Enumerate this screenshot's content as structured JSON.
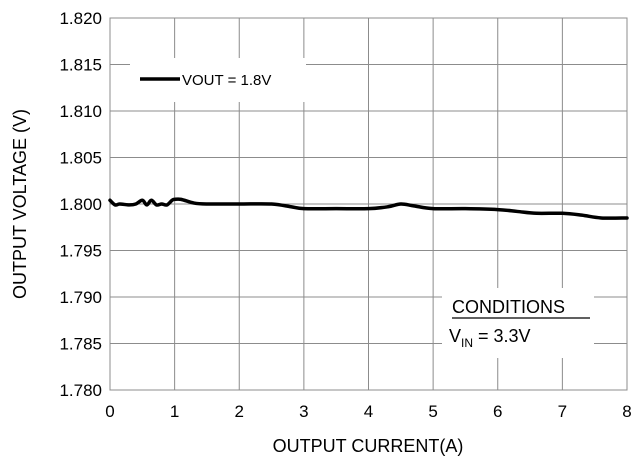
{
  "chart_data": {
    "type": "line",
    "xlabel": "OUTPUT CURRENT(A)",
    "ylabel": "OUTPUT VOLTAGE (V)",
    "xlim": [
      0,
      8
    ],
    "ylim": [
      1.78,
      1.82
    ],
    "x_ticks": [
      "0",
      "1",
      "2",
      "3",
      "4",
      "5",
      "6",
      "7",
      "8"
    ],
    "y_ticks": [
      "1.780",
      "1.785",
      "1.790",
      "1.795",
      "1.800",
      "1.805",
      "1.810",
      "1.815",
      "1.820"
    ],
    "grid": true,
    "legend_position": "top-left",
    "series": [
      {
        "name": "VOUT = 1.8V",
        "color": "#000000",
        "x": [
          0.0,
          0.08,
          0.15,
          0.3,
          0.4,
          0.5,
          0.57,
          0.64,
          0.72,
          0.8,
          0.88,
          0.96,
          1.0,
          1.1,
          1.3,
          1.5,
          2.0,
          2.5,
          2.8,
          3.0,
          3.5,
          4.0,
          4.3,
          4.5,
          4.7,
          5.0,
          5.5,
          6.0,
          6.3,
          6.6,
          7.0,
          7.3,
          7.6,
          8.0
        ],
        "values": [
          1.8004,
          1.7999,
          1.8,
          1.7999,
          1.8,
          1.8004,
          1.7999,
          1.8004,
          1.7999,
          1.8,
          1.7999,
          1.8004,
          1.8005,
          1.8005,
          1.8001,
          1.8,
          1.8,
          1.8,
          1.7997,
          1.7995,
          1.7995,
          1.7995,
          1.7997,
          1.8,
          1.7998,
          1.7995,
          1.7995,
          1.7994,
          1.7992,
          1.799,
          1.799,
          1.7988,
          1.7985,
          1.7985
        ]
      }
    ],
    "annotation": {
      "heading": "CONDITIONS",
      "symbol": "V",
      "subscript": "IN",
      "value": " = 3.3V"
    }
  }
}
